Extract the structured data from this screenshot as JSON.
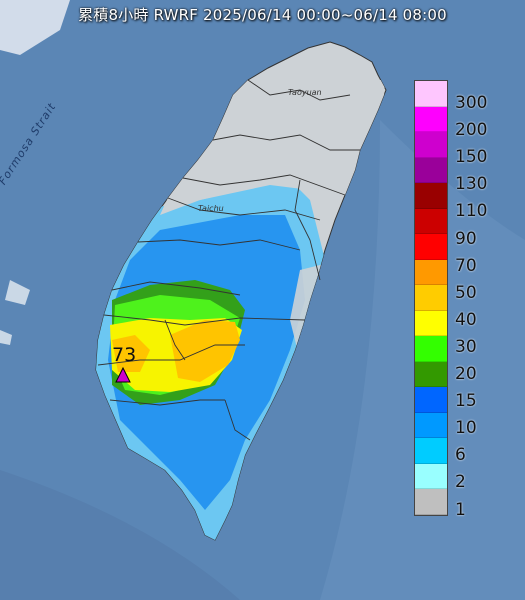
{
  "title": "累積8小時 RWRF 2025/06/14 00:00~06/14 08:00",
  "strait_label": "Formosa Strait",
  "places": {
    "taoyuan": "Taoyuan",
    "taichung": "Taichu"
  },
  "max_marker": {
    "value": "73"
  },
  "legend": {
    "labels": [
      "300",
      "200",
      "150",
      "130",
      "110",
      "90",
      "70",
      "50",
      "40",
      "30",
      "20",
      "15",
      "10",
      "6",
      "2",
      "1"
    ],
    "colors": [
      "#fec6fe",
      "#fe00fe",
      "#ce00ce",
      "#9a009a",
      "#990000",
      "#cc0000",
      "#ff0000",
      "#ff9900",
      "#ffcc00",
      "#ffff00",
      "#33ff00",
      "#339900",
      "#0066ff",
      "#0099ff",
      "#00ccff",
      "#99ffff",
      "#bfbfbf"
    ]
  }
}
